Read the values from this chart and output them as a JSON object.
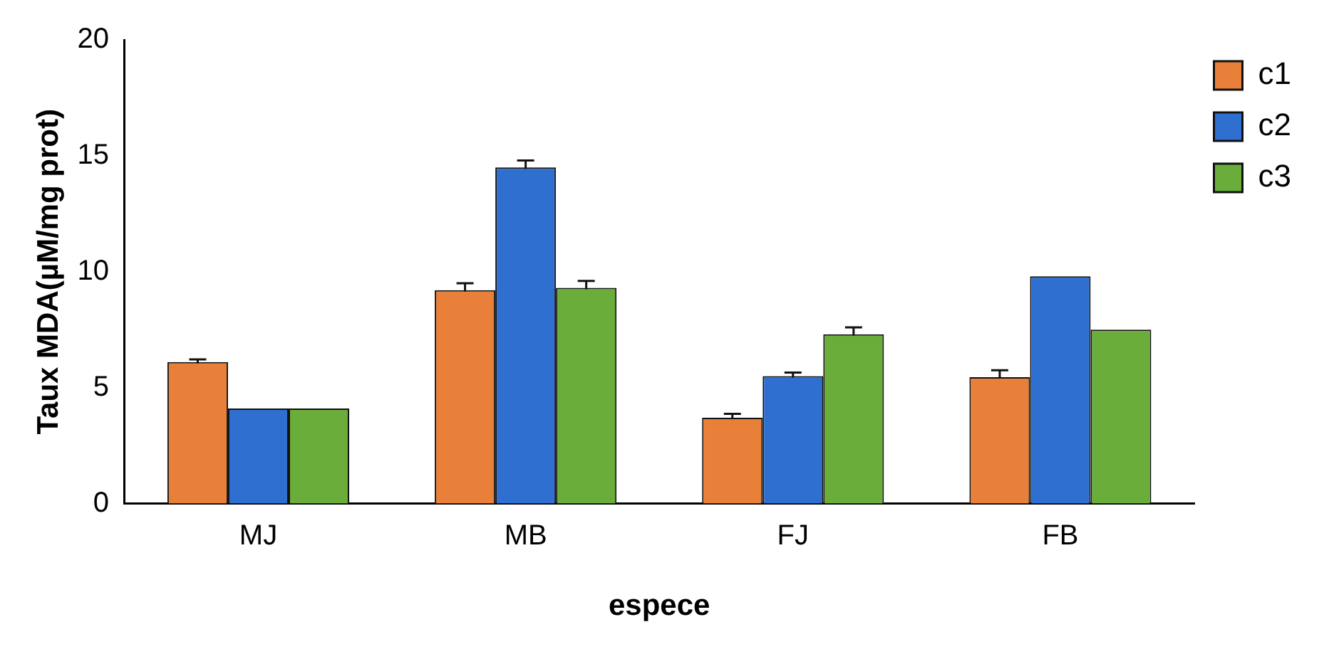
{
  "chart_data": {
    "type": "bar",
    "xlabel": "espece",
    "ylabel": "Taux MDA(µM/mg prot)",
    "categories": [
      "MJ",
      "MB",
      "FJ",
      "FB"
    ],
    "series": [
      {
        "name": "c1",
        "color": "#e8803a",
        "values": [
          6.1,
          9.2,
          3.7,
          5.45
        ],
        "errors": [
          0.12,
          0.3,
          0.17,
          0.3
        ]
      },
      {
        "name": "c2",
        "color": "#2e6fd0",
        "values": [
          4.1,
          14.5,
          5.5,
          9.8
        ],
        "errors": [
          null,
          0.3,
          0.15,
          null
        ]
      },
      {
        "name": "c3",
        "color": "#6aad3a",
        "values": [
          4.1,
          9.3,
          7.3,
          7.5
        ],
        "errors": [
          null,
          0.3,
          0.3,
          null
        ]
      }
    ],
    "ylim": [
      0,
      20
    ],
    "yticks": [
      0,
      5,
      10,
      15,
      20
    ],
    "grid": false,
    "legend": "top right"
  }
}
